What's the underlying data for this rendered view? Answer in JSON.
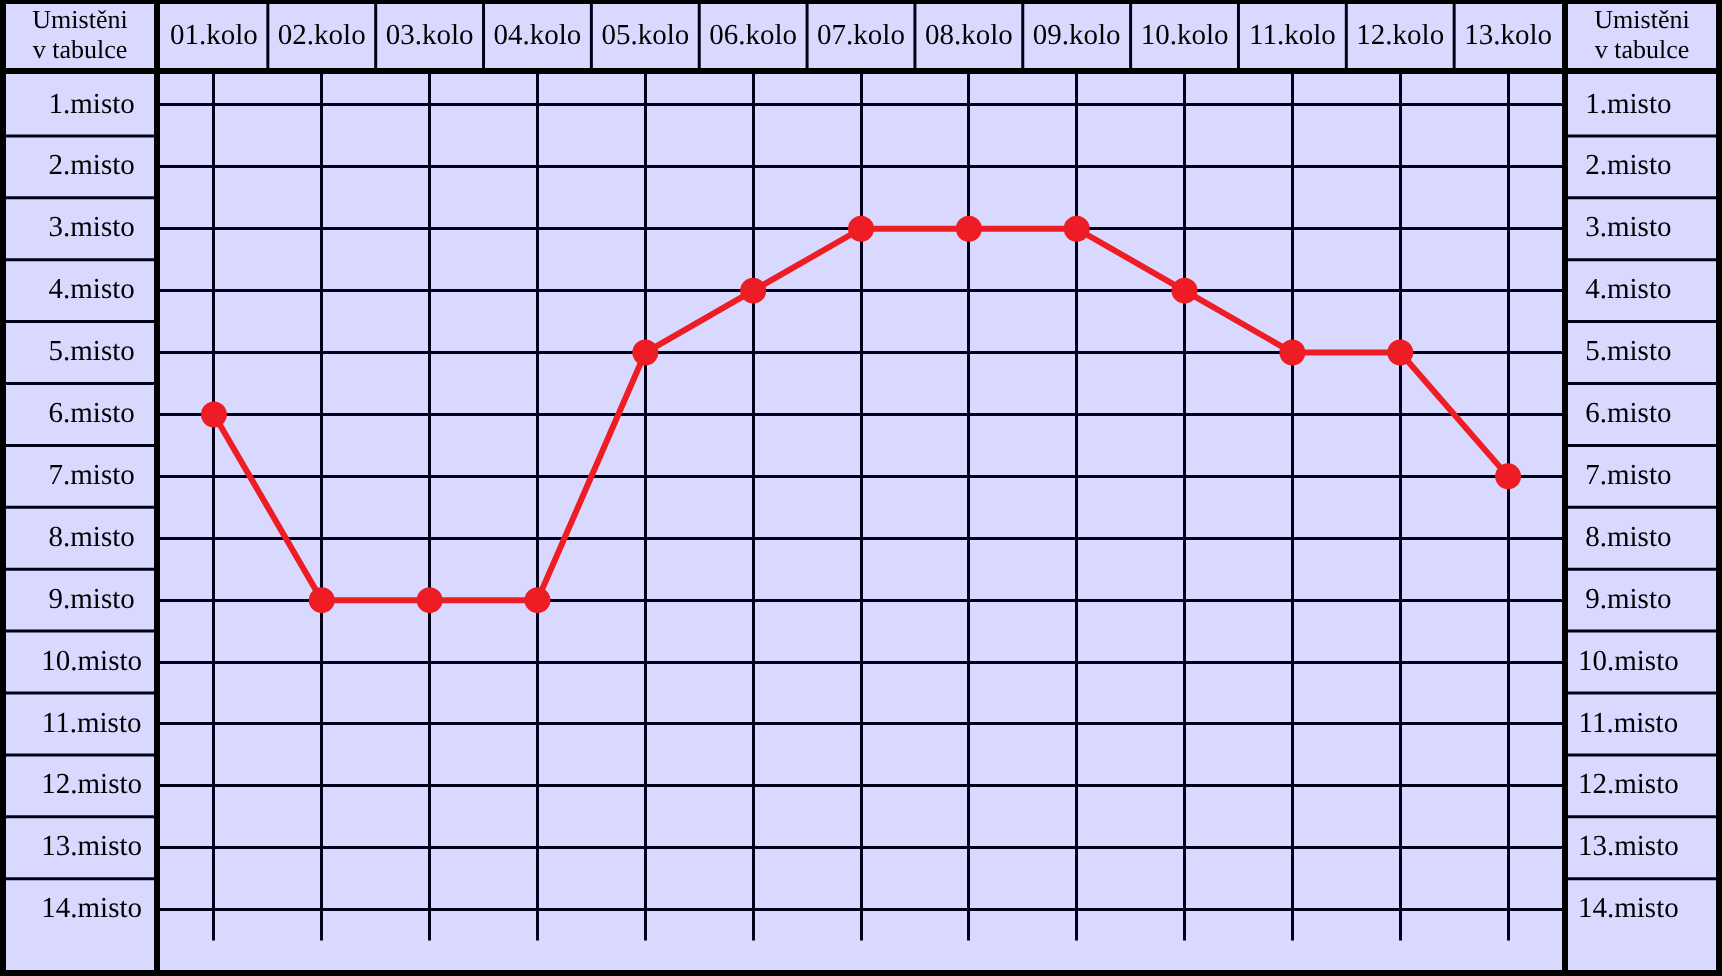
{
  "chart_data": {
    "type": "line",
    "ylabel": "Umistěni\nv tabulce",
    "y2label": "Umistěni\nv tabulce",
    "categories": [
      "01.kolo",
      "02.kolo",
      "03.kolo",
      "04.kolo",
      "05.kolo",
      "06.kolo",
      "07.kolo",
      "08.kolo",
      "09.kolo",
      "10.kolo",
      "11.kolo",
      "12.kolo",
      "13.kolo"
    ],
    "values": [
      6,
      9,
      9,
      9,
      5,
      4,
      3,
      3,
      3,
      4,
      5,
      5,
      7
    ],
    "color": "#ee1c24",
    "ylim": [
      14.5,
      0.5
    ],
    "yticks": [
      {
        "value": 1,
        "label": "1.misto"
      },
      {
        "value": 2,
        "label": "2.misto"
      },
      {
        "value": 3,
        "label": "3.misto"
      },
      {
        "value": 4,
        "label": "4.misto"
      },
      {
        "value": 5,
        "label": "5.misto"
      },
      {
        "value": 6,
        "label": "6.misto"
      },
      {
        "value": 7,
        "label": "7.misto"
      },
      {
        "value": 8,
        "label": "8.misto"
      },
      {
        "value": 9,
        "label": "9.misto"
      },
      {
        "value": 10,
        "label": "10.misto"
      },
      {
        "value": 11,
        "label": "11.misto"
      },
      {
        "value": 12,
        "label": "12.misto"
      },
      {
        "value": 13,
        "label": "13.misto"
      },
      {
        "value": 14,
        "label": "14.misto"
      }
    ],
    "y2lim": [
      14.5,
      0.5
    ],
    "y2ticks": [
      {
        "value": 1,
        "label": "1.misto"
      },
      {
        "value": 2,
        "label": "2.misto"
      },
      {
        "value": 3,
        "label": "3.misto"
      },
      {
        "value": 4,
        "label": "4.misto"
      },
      {
        "value": 5,
        "label": "5.misto"
      },
      {
        "value": 6,
        "label": "6.misto"
      },
      {
        "value": 7,
        "label": "7.misto"
      },
      {
        "value": 8,
        "label": "8.misto"
      },
      {
        "value": 9,
        "label": "9.misto"
      },
      {
        "value": 10,
        "label": "10.misto"
      },
      {
        "value": 11,
        "label": "11.misto"
      },
      {
        "value": 12,
        "label": "12.misto"
      },
      {
        "value": 13,
        "label": "13.misto"
      },
      {
        "value": 14,
        "label": "14.misto"
      }
    ],
    "grid": true,
    "marker": "circle",
    "line_style": "solid"
  }
}
